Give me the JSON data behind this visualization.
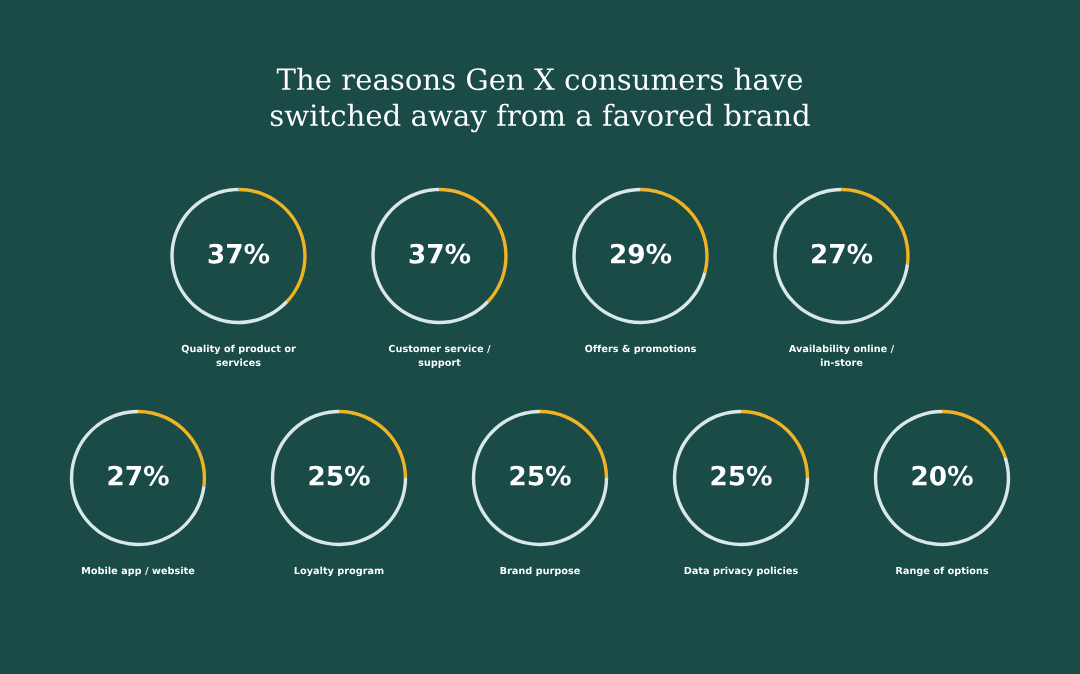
{
  "chart_data": [
    {
      "type": "other",
      "title": "The reasons Gen X consumers have\nswitched away from a favored brand"
    },
    {
      "type": "donut",
      "title": "Quality of product or\nservices",
      "categories": [
        null,
        null
      ],
      "values": [
        37,
        63
      ],
      "colors": [
        "#f0b323",
        "#d8e8e6"
      ],
      "value_labels": [
        "37%",
        null
      ]
    },
    {
      "type": "donut",
      "title": "Customer service /\nsupport",
      "categories": [
        null,
        null
      ],
      "values": [
        37,
        63
      ],
      "colors": [
        "#f0b323",
        "#d8e8e6"
      ],
      "value_labels": [
        "37%",
        null
      ]
    },
    {
      "type": "donut",
      "title": "Offers & promotions",
      "categories": [
        null,
        null
      ],
      "values": [
        29,
        71
      ],
      "colors": [
        "#f0b323",
        "#d8e8e6"
      ],
      "value_labels": [
        "29%",
        null
      ]
    },
    {
      "type": "donut",
      "title": "Availability online /\nin-store",
      "categories": [
        null,
        null
      ],
      "values": [
        27,
        73
      ],
      "colors": [
        "#f0b323",
        "#d8e8e6"
      ],
      "value_labels": [
        "27%",
        null
      ]
    },
    {
      "type": "donut",
      "title": "Mobile app / website",
      "categories": [
        null,
        null
      ],
      "values": [
        27,
        73
      ],
      "colors": [
        "#f0b323",
        "#d8e8e6"
      ],
      "value_labels": [
        "27%",
        null
      ]
    },
    {
      "type": "donut",
      "title": "Loyalty program",
      "categories": [
        null,
        null
      ],
      "values": [
        25,
        75
      ],
      "colors": [
        "#f0b323",
        "#d8e8e6"
      ],
      "value_labels": [
        "25%",
        null
      ]
    },
    {
      "type": "donut",
      "title": "Brand purpose",
      "categories": [
        null,
        null
      ],
      "values": [
        25,
        75
      ],
      "colors": [
        "#f0b323",
        "#d8e8e6"
      ],
      "value_labels": [
        "25%",
        null
      ]
    },
    {
      "type": "donut",
      "title": "Data privacy policies",
      "categories": [
        null,
        null
      ],
      "values": [
        25,
        75
      ],
      "colors": [
        "#f0b323",
        "#d8e8e6"
      ],
      "value_labels": [
        "25%",
        null
      ]
    },
    {
      "type": "donut",
      "title": "Range of options",
      "categories": [
        null,
        null
      ],
      "values": [
        20,
        80
      ],
      "colors": [
        "#f0b323",
        "#d8e8e6"
      ],
      "value_labels": [
        "20%",
        null
      ]
    }
  ]
}
